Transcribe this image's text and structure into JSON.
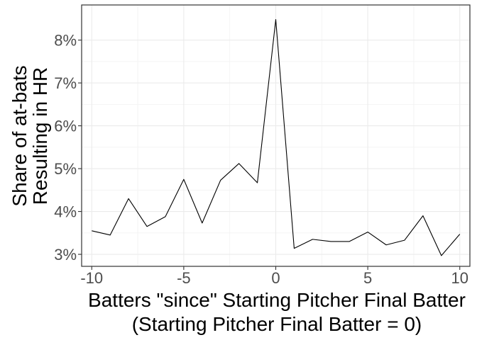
{
  "chart_data": {
    "type": "line",
    "xlabel_line1": "Batters \"since\" Starting Pitcher Final Batter",
    "xlabel_line2": "(Starting Pitcher Final Batter = 0)",
    "ylabel_line1": "Share of at-bats",
    "ylabel_line2": "Resulting in HR",
    "xlim": [
      -10.55,
      10.55
    ],
    "ylim": [
      2.72,
      8.82
    ],
    "x_ticks": [
      -10,
      -5,
      0,
      5,
      10
    ],
    "x_tick_labels": [
      "-10",
      "-5",
      "0",
      "5",
      "10"
    ],
    "y_ticks": [
      3,
      4,
      5,
      6,
      7,
      8
    ],
    "y_tick_labels": [
      "3%",
      "4%",
      "5%",
      "6%",
      "7%",
      "8%"
    ],
    "grid": true,
    "line_color": "#000000",
    "series": [
      {
        "x": [
          -10,
          -9,
          -8,
          -7,
          -6,
          -5,
          -4,
          -3,
          -2,
          -1,
          0,
          1,
          2,
          3,
          4,
          5,
          6,
          7,
          8,
          9,
          10
        ],
        "values": [
          3.55,
          3.45,
          4.3,
          3.65,
          3.88,
          4.75,
          3.73,
          4.73,
          5.12,
          4.67,
          8.48,
          3.14,
          3.35,
          3.3,
          3.3,
          3.52,
          3.22,
          3.33,
          3.9,
          2.97,
          3.47
        ]
      }
    ]
  }
}
